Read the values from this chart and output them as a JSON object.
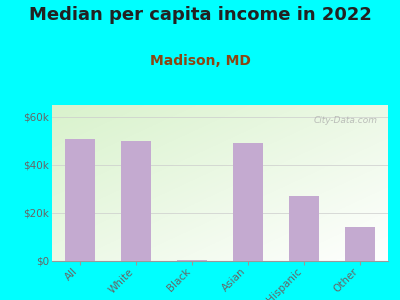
{
  "title": "Median per capita income in 2022",
  "subtitle": "Madison, MD",
  "categories": [
    "All",
    "White",
    "Black",
    "Asian",
    "Hispanic",
    "Other"
  ],
  "values": [
    51000,
    50000,
    500,
    49000,
    27000,
    14000
  ],
  "bar_color": "#c4aad0",
  "title_fontsize": 13,
  "subtitle_fontsize": 10,
  "title_color": "#222222",
  "subtitle_color": "#8B4513",
  "tick_label_color": "#666666",
  "background_outer": "#00FFFF",
  "ylim": [
    0,
    65000
  ],
  "yticks": [
    0,
    20000,
    40000,
    60000
  ],
  "ytick_labels": [
    "$0",
    "$20k",
    "$40k",
    "$60k"
  ],
  "watermark": "City-Data.com"
}
